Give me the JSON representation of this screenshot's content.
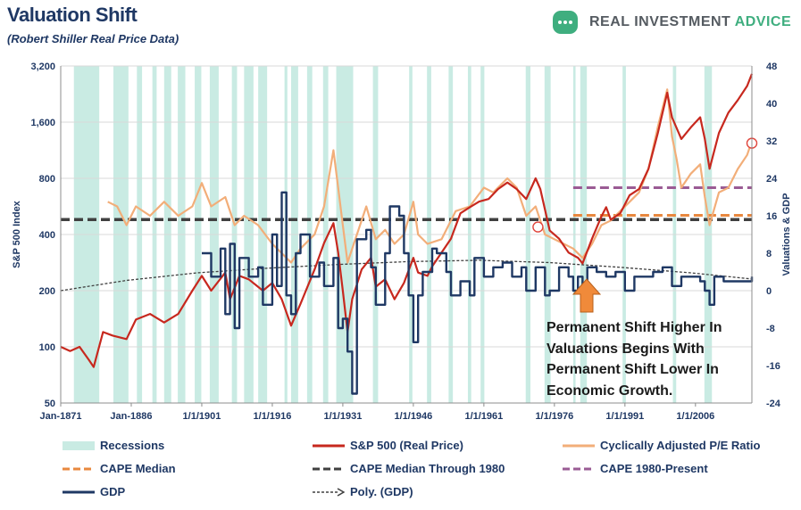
{
  "header": {
    "title": "Valuation Shift",
    "subtitle": "(Robert Shiller Real Price Data)",
    "brand_name": "REAL INVESTMENT",
    "brand_accent": "ADVICE"
  },
  "annotation": {
    "lines": [
      "Permanent Shift Higher In",
      "Valuations Begins With",
      "Permanent Shift Lower In",
      "Economic Growth."
    ]
  },
  "colors": {
    "sp500": "#c7281e",
    "cape": "#f2ae79",
    "cape_median": "#e8883f",
    "cape_median_1980": "#404040",
    "cape_1980_present": "#9a5b94",
    "gdp": "#1f3864",
    "poly_gdp": "#404040",
    "recession": "#c9ebe3",
    "arrow": "#f08a3a",
    "axis_text": "#1f3864",
    "brand_accent": "#3fae7f"
  },
  "chart_data": {
    "type": "line",
    "title": "Valuation Shift",
    "subtitle": "(Robert Shiller Real Price Data)",
    "xlabel": "",
    "ylabel_left": "S&P 500 Index",
    "ylabel_right": "Valuations & GDP",
    "y_left_scale": "log",
    "y_left_ticks": [
      "50",
      "100",
      "200",
      "400",
      "800",
      "1,600",
      "3,200"
    ],
    "y_right_ticks": [
      "-24",
      "-16",
      "-8",
      "0",
      "8",
      "16",
      "24",
      "32",
      "40",
      "48"
    ],
    "x_ticks": [
      "Jan-1871",
      "Jan-1886",
      "1/1/1901",
      "1/1/1916",
      "1/1/1931",
      "1/1/1946",
      "1/1/1961",
      "1/1/1976",
      "1/1/1991",
      "1/1/2006"
    ],
    "xlim": [
      1871,
      2018
    ],
    "ylim_left": [
      50,
      3200
    ],
    "ylim_right": [
      -24,
      48
    ],
    "grid": "horizontal",
    "legend_position": "bottom",
    "legend": [
      "Recessions",
      "S&P 500 (Real Price)",
      "Cyclically Adjusted P/E Ratio",
      "CAPE Median",
      "CAPE Median Through 1980",
      "CAPE 1980-Present",
      "GDP",
      "Poly. (GDP)"
    ],
    "recessions": [
      [
        1873.8,
        1879.2
      ],
      [
        1882.2,
        1885.4
      ],
      [
        1887.2,
        1888.3
      ],
      [
        1890.5,
        1891.4
      ],
      [
        1893.0,
        1894.5
      ],
      [
        1895.9,
        1897.5
      ],
      [
        1899.5,
        1900.9
      ],
      [
        1902.7,
        1904.6
      ],
      [
        1907.4,
        1908.5
      ],
      [
        1910.0,
        1912.0
      ],
      [
        1913.0,
        1914.9
      ],
      [
        1918.6,
        1919.2
      ],
      [
        1920.0,
        1921.5
      ],
      [
        1923.4,
        1924.5
      ],
      [
        1926.8,
        1927.9
      ],
      [
        1929.6,
        1933.2
      ],
      [
        1937.4,
        1938.5
      ],
      [
        1945.1,
        1945.8
      ],
      [
        1948.9,
        1949.8
      ],
      [
        1953.5,
        1954.4
      ],
      [
        1957.6,
        1958.3
      ],
      [
        1960.3,
        1961.1
      ],
      [
        1969.9,
        1970.9
      ],
      [
        1973.9,
        1975.2
      ],
      [
        1980.0,
        1980.5
      ],
      [
        1981.5,
        1982.9
      ],
      [
        1990.5,
        1991.2
      ],
      [
        2001.2,
        2001.9
      ],
      [
        2007.9,
        2009.5
      ]
    ],
    "series": [
      {
        "name": "S&P 500 (Real Price)",
        "axis": "left",
        "x": [
          1871,
          1873,
          1875,
          1877,
          1878,
          1880,
          1882,
          1885,
          1887,
          1890,
          1893,
          1896,
          1899,
          1901,
          1903,
          1906,
          1907,
          1909,
          1911,
          1914,
          1916,
          1918,
          1920,
          1922,
          1925,
          1927,
          1929,
          1930,
          1931,
          1932,
          1933,
          1935,
          1937,
          1938,
          1940,
          1942,
          1944,
          1946,
          1947,
          1949,
          1950,
          1952,
          1954,
          1956,
          1958,
          1960,
          1962,
          1964,
          1966,
          1968,
          1970,
          1972,
          1973,
          1975,
          1977,
          1979,
          1981,
          1982,
          1984,
          1986,
          1987,
          1988,
          1990,
          1992,
          1994,
          1996,
          1998,
          2000,
          2001,
          2003,
          2005,
          2007,
          2008,
          2009,
          2011,
          2013,
          2015,
          2017,
          2018
        ],
        "values": [
          100,
          95,
          100,
          85,
          78,
          120,
          115,
          110,
          140,
          150,
          135,
          150,
          200,
          240,
          200,
          250,
          180,
          240,
          230,
          200,
          220,
          180,
          130,
          170,
          260,
          360,
          460,
          320,
          200,
          120,
          180,
          260,
          300,
          210,
          230,
          180,
          220,
          300,
          250,
          240,
          270,
          320,
          380,
          520,
          560,
          600,
          620,
          700,
          760,
          700,
          620,
          800,
          700,
          420,
          380,
          320,
          300,
          280,
          380,
          500,
          560,
          480,
          520,
          650,
          700,
          900,
          1400,
          2300,
          1700,
          1300,
          1500,
          1700,
          1300,
          900,
          1400,
          1800,
          2100,
          2500,
          2900
        ]
      },
      {
        "name": "Cyclically Adjusted P/E Ratio",
        "axis": "right",
        "x": [
          1881,
          1883,
          1885,
          1887,
          1890,
          1893,
          1896,
          1899,
          1901,
          1903,
          1906,
          1908,
          1910,
          1913,
          1916,
          1918,
          1920,
          1922,
          1925,
          1927,
          1929,
          1930,
          1931,
          1932,
          1934,
          1936,
          1938,
          1940,
          1942,
          1944,
          1946,
          1947,
          1949,
          1952,
          1955,
          1958,
          1961,
          1963,
          1966,
          1968,
          1970,
          1972,
          1974,
          1976,
          1978,
          1980,
          1982,
          1984,
          1986,
          1988,
          1990,
          1992,
          1994,
          1996,
          1998,
          2000,
          2001,
          2002,
          2003,
          2005,
          2007,
          2008,
          2009,
          2011,
          2013,
          2015,
          2017,
          2018
        ],
        "values": [
          19,
          18,
          14,
          18,
          16,
          19,
          16,
          18,
          23,
          18,
          20,
          14,
          16,
          14,
          10,
          8,
          6,
          9,
          12,
          18,
          30,
          22,
          14,
          6,
          12,
          18,
          11,
          13,
          10,
          12,
          19,
          12,
          10,
          11,
          17,
          18,
          22,
          21,
          24,
          22,
          16,
          18,
          12,
          11,
          10,
          9,
          7,
          10,
          14,
          15,
          17,
          19,
          21,
          26,
          35,
          43,
          33,
          28,
          22,
          25,
          27,
          20,
          14,
          21,
          22,
          26,
          29,
          32
        ]
      },
      {
        "name": "GDP",
        "axis": "right",
        "x": [
          1901,
          1903,
          1905,
          1906,
          1907,
          1908,
          1909,
          1911,
          1913,
          1914,
          1916,
          1917,
          1918,
          1919,
          1920,
          1921,
          1922,
          1924,
          1926,
          1927,
          1929,
          1930,
          1931,
          1932,
          1933,
          1934,
          1936,
          1937,
          1938,
          1940,
          1941,
          1942,
          1943,
          1944,
          1945,
          1946,
          1947,
          1948,
          1950,
          1951,
          1953,
          1954,
          1956,
          1958,
          1959,
          1961,
          1963,
          1965,
          1967,
          1969,
          1970,
          1972,
          1974,
          1975,
          1977,
          1979,
          1980,
          1981,
          1982,
          1983,
          1985,
          1987,
          1989,
          1991,
          1993,
          1995,
          1997,
          1999,
          2001,
          2003,
          2005,
          2007,
          2008,
          2009,
          2010,
          2012,
          2014,
          2016,
          2018
        ],
        "values": [
          8,
          3,
          9,
          -5,
          10,
          -8,
          7,
          3,
          5,
          -3,
          12,
          1,
          21,
          -1,
          -5,
          8,
          12,
          3,
          6,
          1,
          7,
          -8,
          -6,
          -13,
          -22,
          11,
          13,
          5,
          -3,
          8,
          18,
          18,
          16,
          8,
          -1,
          -11,
          -1,
          4,
          9,
          8,
          4,
          -1,
          2,
          -1,
          7,
          3,
          5,
          6,
          3,
          5,
          0,
          5,
          -1,
          0,
          5,
          3,
          0,
          3,
          -2,
          5,
          4,
          3,
          4,
          0,
          3,
          3,
          4,
          5,
          1,
          3,
          3,
          2,
          0,
          -3,
          3,
          2,
          2,
          2,
          3
        ]
      },
      {
        "name": "Poly. (GDP)",
        "axis": "right",
        "x": [
          1871,
          1885,
          1900,
          1915,
          1930,
          1945,
          1960,
          1975,
          1990,
          2005,
          2018
        ],
        "values": [
          0,
          2.2,
          3.8,
          4.8,
          5.6,
          6.2,
          6.5,
          6.0,
          5.0,
          3.8,
          2.5
        ]
      },
      {
        "name": "CAPE Median",
        "axis": "right",
        "x": [
          1980,
          2018
        ],
        "values": [
          16.1,
          16.1
        ]
      },
      {
        "name": "CAPE Median Through 1980",
        "axis": "right",
        "x": [
          1871,
          2018
        ],
        "values": [
          15.2,
          15.2
        ]
      },
      {
        "name": "CAPE 1980-Present",
        "axis": "right",
        "x": [
          1980,
          2018
        ],
        "values": [
          22.0,
          22.0
        ]
      }
    ],
    "markers": [
      {
        "series": "Cyclically Adjusted P/E Ratio",
        "x": 1972.5,
        "y": 13.6
      },
      {
        "series": "Cyclically Adjusted P/E Ratio",
        "x": 2018,
        "y": 31.5
      }
    ]
  }
}
